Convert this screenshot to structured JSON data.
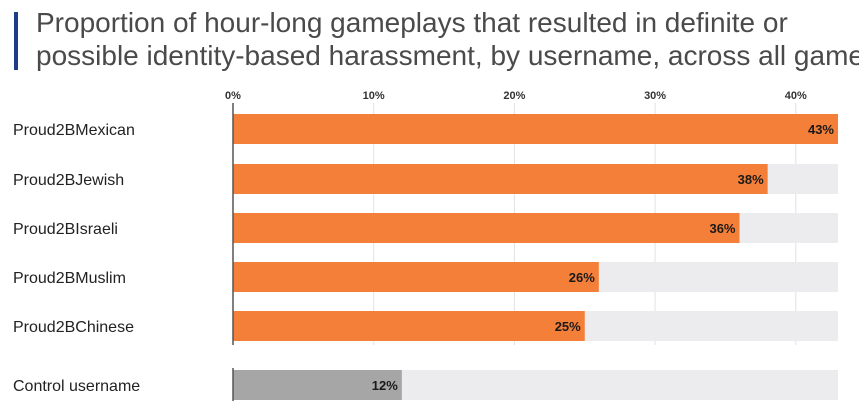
{
  "title_lines": [
    "Proportion of hour-long gameplays that resulted in definite or",
    "possible identity-based harassment, by username, across all games"
  ],
  "chart_data": {
    "type": "bar",
    "orientation": "horizontal",
    "categories": [
      "Proud2BMexican",
      "Proud2BJewish",
      "Proud2BIsraeli",
      "Proud2BMuslim",
      "Proud2BChinese",
      "Control username"
    ],
    "values": [
      43,
      38,
      36,
      26,
      25,
      12
    ],
    "value_labels": [
      "43%",
      "38%",
      "36%",
      "26%",
      "25%",
      "12%"
    ],
    "xlim": [
      0,
      43
    ],
    "xticks": [
      0,
      10,
      20,
      30,
      40
    ],
    "xtick_labels": [
      "0%",
      "10%",
      "20%",
      "30%",
      "40%"
    ],
    "xlabel": "",
    "ylabel": "",
    "grid": "vertical",
    "colors": {
      "highlight": "#f47f38",
      "control": "#a6a6a6",
      "track": "#ececee",
      "axis": "#555555"
    }
  }
}
